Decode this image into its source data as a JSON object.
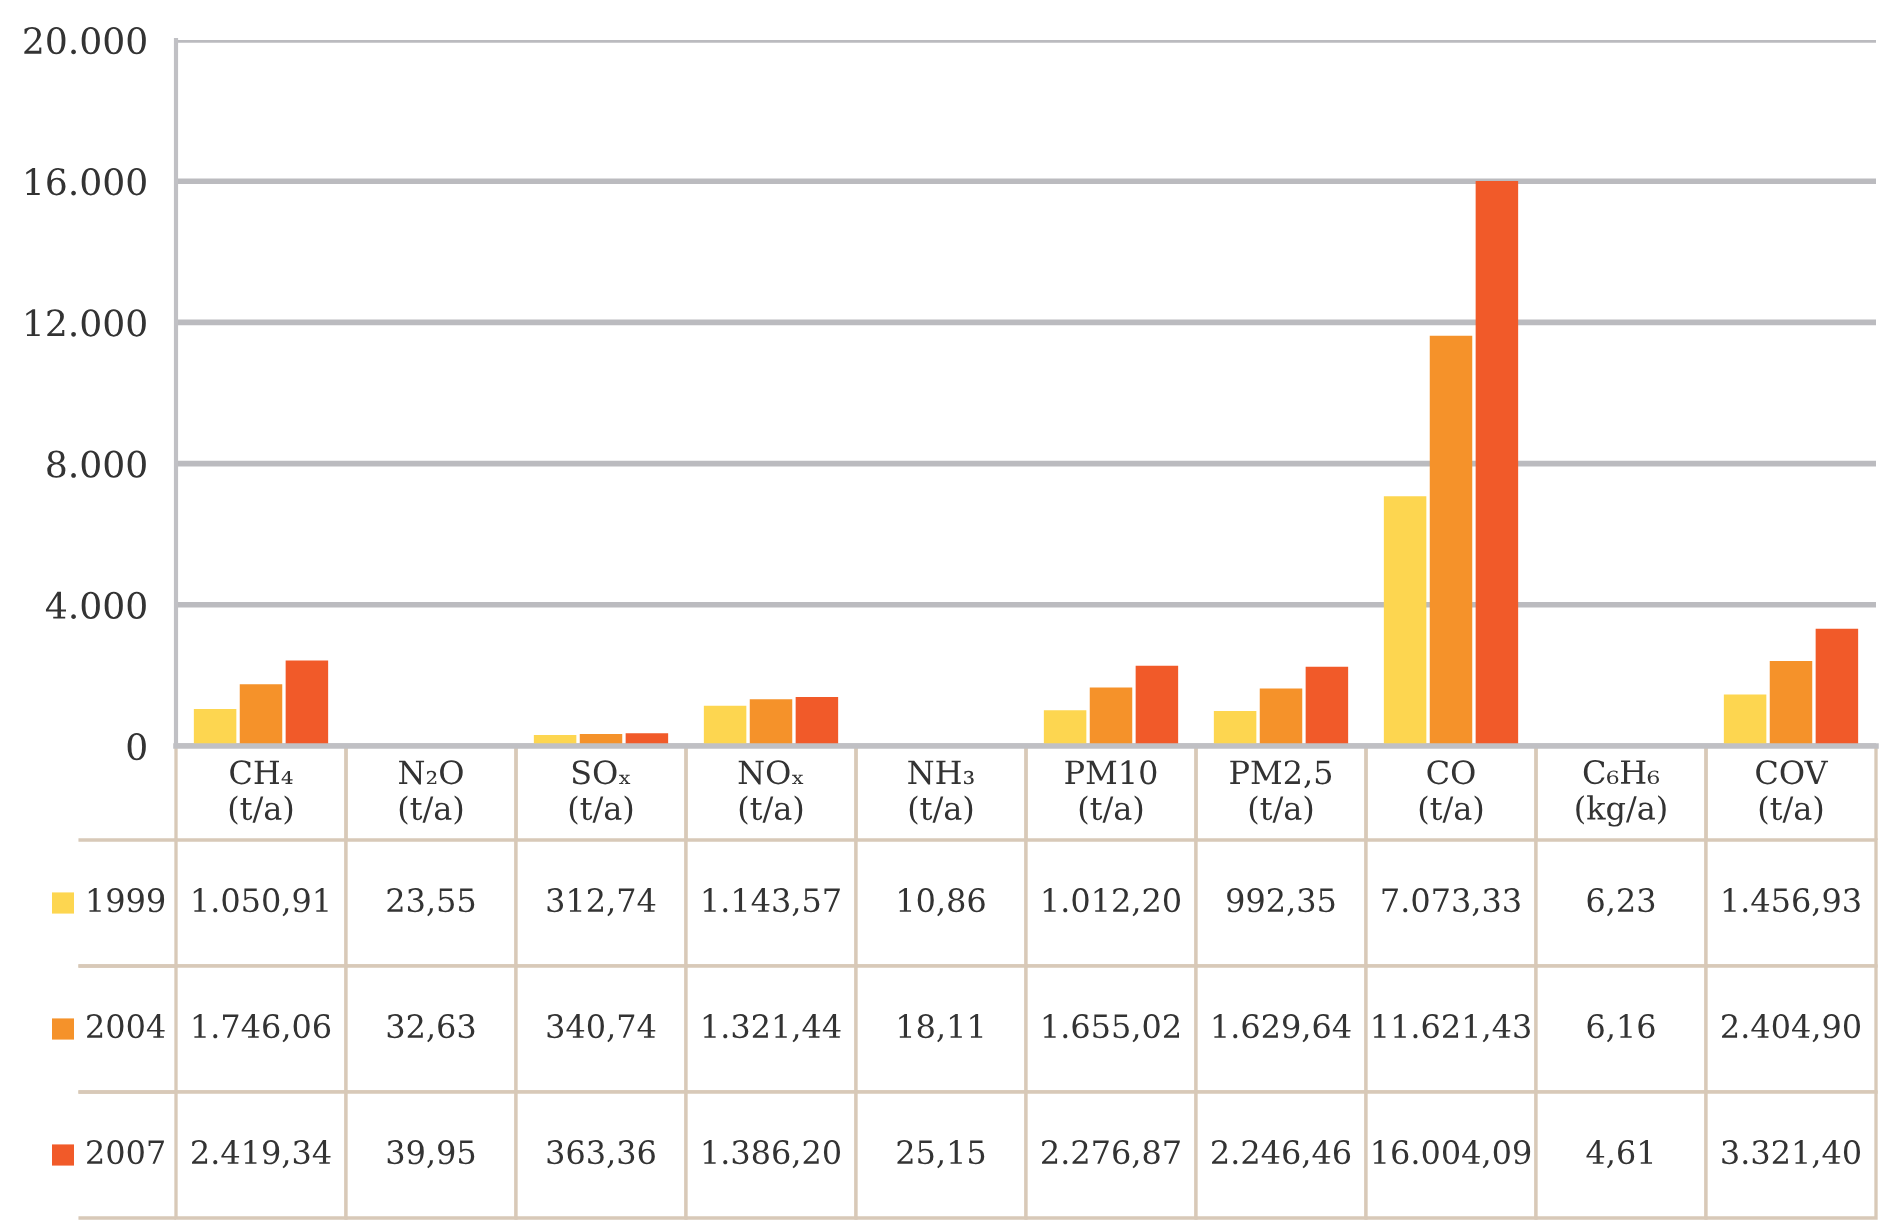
{
  "chart_data": {
    "type": "bar",
    "categories": [
      "CH₄\n(t/a)",
      "N₂O\n(t/a)",
      "SOₓ\n(t/a)",
      "NOₓ\n(t/a)",
      "NH₃\n(t/a)",
      "PM10\n(t/a)",
      "PM2,5\n(t/a)",
      "CO\n(t/a)",
      "C₆H₆\n(kg/a)",
      "COV\n(t/a)"
    ],
    "series": [
      {
        "name": "1999",
        "color": "#fdd650",
        "values": [
          1050.91,
          23.55,
          312.74,
          1143.57,
          10.86,
          1012.2,
          992.35,
          7073.33,
          6.23,
          1456.93
        ],
        "value_labels": [
          "1.050,91",
          "23,55",
          "312,74",
          "1.143,57",
          "10,86",
          "1.012,20",
          "992,35",
          "7.073,33",
          "6,23",
          "1.456,93"
        ]
      },
      {
        "name": "2004",
        "color": "#f5922a",
        "values": [
          1746.06,
          32.63,
          340.74,
          1321.44,
          18.11,
          1655.02,
          1629.64,
          11621.43,
          6.16,
          2404.9
        ],
        "value_labels": [
          "1.746,06",
          "32,63",
          "340,74",
          "1.321,44",
          "18,11",
          "1.655,02",
          "1.629,64",
          "11.621,43",
          "6,16",
          "2.404,90"
        ]
      },
      {
        "name": "2007",
        "color": "#f15a29",
        "values": [
          2419.34,
          39.95,
          363.36,
          1386.2,
          25.15,
          2276.87,
          2246.46,
          16004.09,
          4.61,
          3321.4
        ],
        "value_labels": [
          "2.419,34",
          "39,95",
          "363,36",
          "1.386,20",
          "25,15",
          "2.276,87",
          "2.246,46",
          "16.004,09",
          "4,61",
          "3.321,40"
        ]
      }
    ],
    "ylim": [
      0,
      20000
    ],
    "yticks": [
      {
        "value": 0,
        "label": "0"
      },
      {
        "value": 4000,
        "label": "4.000"
      },
      {
        "value": 8000,
        "label": "8.000"
      },
      {
        "value": 12000,
        "label": "12.000"
      },
      {
        "value": 16000,
        "label": "16.000"
      },
      {
        "value": 20000,
        "label": "20.000"
      }
    ],
    "grid": "y",
    "legend": "bottom left"
  }
}
